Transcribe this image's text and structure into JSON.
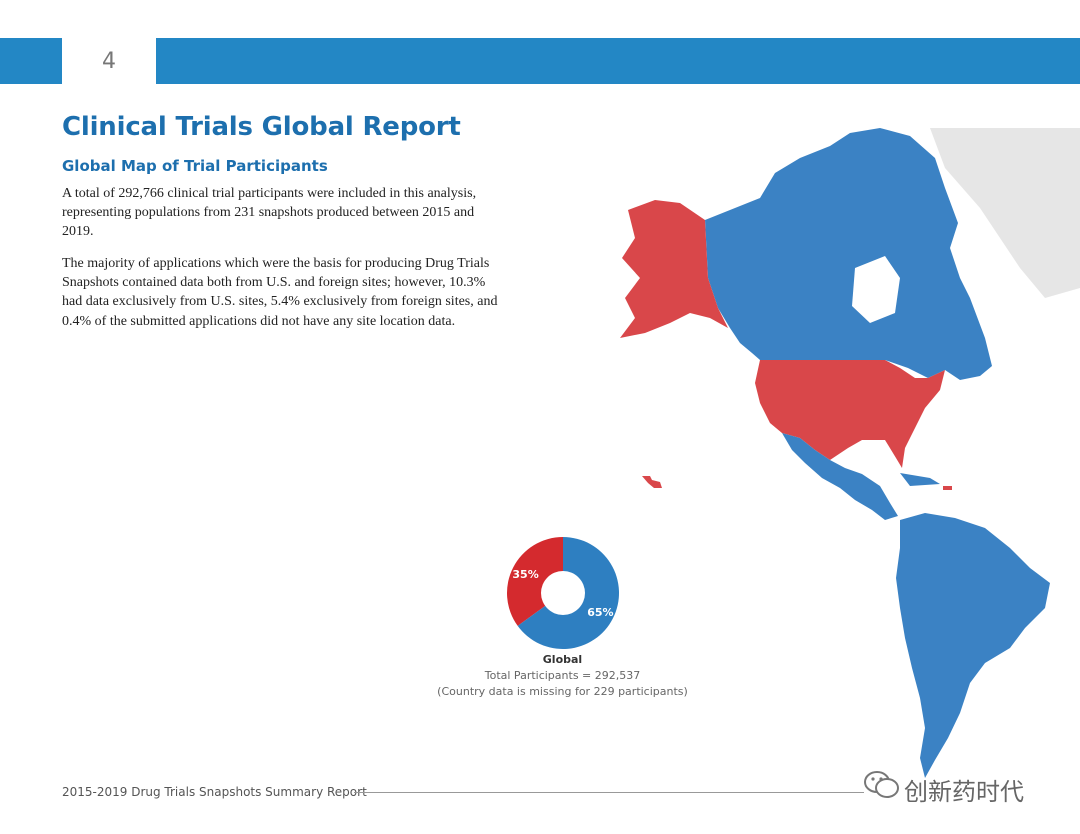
{
  "header": {
    "page_number": "4"
  },
  "title": "Clinical Trials Global Report",
  "subtitle": "Global Map of Trial Participants",
  "paragraphs": [
    "A total of 292,766 clinical trial participants were included in this analysis, representing populations from 231 snapshots produced between 2015 and 2019.",
    "The majority of applications which were the basis for producing Drug Trials Snapshots contained data both from U.S. and foreign sites; however, 10.3% had data exclusively from U.S. sites, 5.4% exclusively from foreign sites, and 0.4% of the submitted applications did not have any site location data."
  ],
  "chart_data": {
    "type": "pie",
    "labels": [
      "35%",
      "65%"
    ],
    "values": [
      35,
      65
    ],
    "colors": [
      "#d42a2e",
      "#2e7fc1"
    ],
    "title": "Global",
    "annotations": [
      "Total Participants = 292,537",
      "(Country data is missing for 229 participants)"
    ]
  },
  "map": {
    "colors": {
      "us": "#d9474a",
      "foreign": "#3b82c4",
      "no_data": "#e6e6e6"
    }
  },
  "footer": {
    "text": "2015-2019 Drug Trials Snapshots Summary Report"
  },
  "watermark": {
    "text": "创新药时代"
  }
}
